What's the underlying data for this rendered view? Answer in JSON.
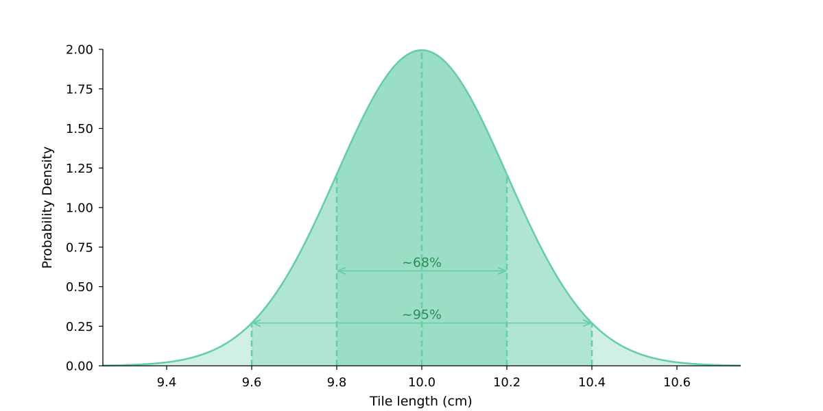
{
  "chart_data": {
    "type": "area",
    "distribution": "normal",
    "mean": 10.0,
    "std": 0.2,
    "xlabel": "Tile length (cm)",
    "ylabel": "Probability Density",
    "xlim": [
      9.25,
      10.75
    ],
    "ylim": [
      0,
      2.0
    ],
    "x_ticks": [
      9.4,
      9.6,
      9.8,
      10.0,
      10.2,
      10.4,
      10.6
    ],
    "x_tick_labels": [
      "9.4",
      "9.6",
      "9.8",
      "10.0",
      "10.2",
      "10.4",
      "10.6"
    ],
    "y_ticks": [
      0,
      0.25,
      0.5,
      0.75,
      1.0,
      1.25,
      1.5,
      1.75,
      2.0
    ],
    "y_tick_labels": [
      "0.00",
      "0.25",
      "0.50",
      "0.75",
      "1.00",
      "1.25",
      "1.50",
      "1.75",
      "2.00"
    ],
    "vertical_lines": [
      9.6,
      9.8,
      10.0,
      10.2,
      10.4
    ],
    "shaded_regions": [
      {
        "from": 9.25,
        "to": 10.75,
        "opacity": 0.3
      },
      {
        "from": 9.6,
        "to": 10.4,
        "opacity": 0.3
      },
      {
        "from": 9.8,
        "to": 10.2,
        "opacity": 0.3
      }
    ],
    "annotations": [
      {
        "text": "~68%",
        "from": 9.8,
        "to": 10.2,
        "y": 0.6
      },
      {
        "text": "~95%",
        "from": 9.6,
        "to": 10.4,
        "y": 0.27
      }
    ],
    "grid": false,
    "legend": "none",
    "colors": {
      "curve": "#66cdaa",
      "fill": "#66cdaa",
      "annotation_text": "#2e8b57",
      "axis": "#000000"
    }
  }
}
